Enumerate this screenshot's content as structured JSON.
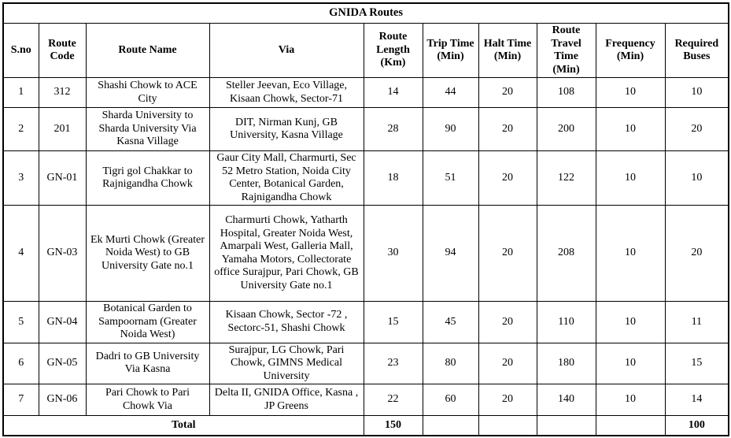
{
  "table": {
    "title": "GNIDA Routes",
    "columns": [
      "S.no",
      "Route Code",
      "Route Name",
      "Via",
      "Route Length (Km)",
      "Trip Time (Min)",
      "Halt Time (Min)",
      "Route Travel Time (Min)",
      "Frequency (Min)",
      "Required Buses"
    ],
    "rows": [
      [
        "1",
        "312",
        "Shashi Chowk to ACE City",
        "Steller Jeevan, Eco Village, Kisaan Chowk, Sector-71",
        "14",
        "44",
        "20",
        "108",
        "10",
        "10"
      ],
      [
        "2",
        "201",
        "Sharda University to Sharda University Via Kasna Village",
        "DIT, Nirman Kunj, GB University, Kasna Village",
        "28",
        "90",
        "20",
        "200",
        "10",
        "20"
      ],
      [
        "3",
        "GN-01",
        "Tigri gol Chakkar to Rajnigandha Chowk",
        "Gaur City Mall, Charmurti, Sec 52 Metro Station, Noida City Center, Botanical Garden, Rajnigandha Chowk",
        "18",
        "51",
        "20",
        "122",
        "10",
        "10"
      ],
      [
        "4",
        "GN-03",
        "Ek Murti Chowk (Greater Noida West) to GB University Gate no.1",
        "Charmurti Chowk, Yatharth Hospital,  Greater Noida West, Amarpali West, Galleria Mall, Yamaha Motors, Collectorate office Surajpur, Pari Chowk, GB University Gate no.1",
        "30",
        "94",
        "20",
        "208",
        "10",
        "20"
      ],
      [
        "5",
        "GN-04",
        "Botanical Garden to Sampoornam (Greater Noida West)",
        "Kisaan Chowk, Sector -72 , Sectorc-51, Shashi Chowk",
        "15",
        "45",
        "20",
        "110",
        "10",
        "11"
      ],
      [
        "6",
        "GN-05",
        "Dadri to GB University Via Kasna",
        "Surajpur, LG Chowk, Pari Chowk,  GIMNS Medical University",
        "23",
        "80",
        "20",
        "180",
        "10",
        "15"
      ],
      [
        "7",
        "GN-06",
        "Pari Chowk to Pari Chowk Via",
        "Delta II, GNIDA Office, Kasna , JP Greens",
        "22",
        "60",
        "20",
        "140",
        "10",
        "14"
      ]
    ],
    "total": {
      "label": "Total",
      "route_length": "150",
      "trip_time": "",
      "halt_time": "",
      "route_travel_time": "",
      "frequency": "",
      "required_buses": "100"
    }
  }
}
